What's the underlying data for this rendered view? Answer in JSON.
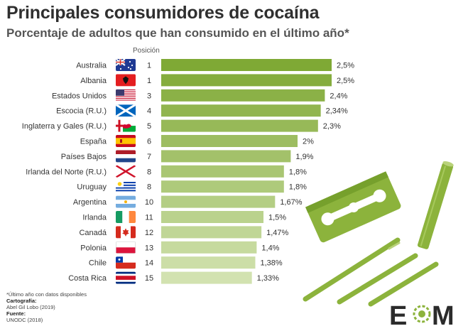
{
  "title": "Principales consumidores de cocaína",
  "subtitle": "Porcentaje de adultos que han consumido en el último año*",
  "position_header": "Posición",
  "chart_data": {
    "type": "bar",
    "orientation": "horizontal",
    "title": "Principales consumidores de cocaína",
    "subtitle": "Porcentaje de adultos que han consumido en el último año*",
    "xlim": [
      0,
      2.5
    ],
    "grid": false,
    "categories": [
      "Australia",
      "Albania",
      "Estados Unidos",
      "Escocia (R.U.)",
      "Inglaterra y Gales (R.U.)",
      "España",
      "Países Bajos",
      "Irlanda del Norte (R.U.)",
      "Uruguay",
      "Argentina",
      "Irlanda",
      "Canadá",
      "Polonia",
      "Chile",
      "Costa Rica"
    ],
    "values": [
      2.5,
      2.5,
      2.4,
      2.34,
      2.3,
      2.0,
      1.9,
      1.8,
      1.8,
      1.67,
      1.5,
      1.47,
      1.4,
      1.38,
      1.33
    ],
    "value_labels": [
      "2,5%",
      "2,5%",
      "2,4%",
      "2,34%",
      "2,3%",
      "2%",
      "1,9%",
      "1,8%",
      "1,8%",
      "1,67%",
      "1,5%",
      "1,47%",
      "1,4%",
      "1,38%",
      "1,33%"
    ],
    "positions": [
      "1",
      "1",
      "3",
      "4",
      "5",
      "6",
      "7",
      "8",
      "8",
      "10",
      "11",
      "12",
      "13",
      "14",
      "15"
    ],
    "flags": [
      "flag-australia-icon",
      "flag-albania-icon",
      "flag-usa-icon",
      "flag-scotland-icon",
      "flag-england-wales-icon",
      "flag-spain-icon",
      "flag-netherlands-icon",
      "flag-northern-ireland-icon",
      "flag-uruguay-icon",
      "flag-argentina-icon",
      "flag-ireland-icon",
      "flag-canada-icon",
      "flag-poland-icon",
      "flag-chile-icon",
      "flag-costa-rica-icon"
    ],
    "bar_color_start": "#7fa935",
    "bar_color_end": "#d2e2b0"
  },
  "footnote": "*Último año con datos disponibles",
  "cartografia_label": "Cartografía:",
  "cartografia_value": "Abel Gil Lobo (2019)",
  "fuente_label": "Fuente:",
  "fuente_value": "UNODC (2018)",
  "logo": {
    "letter1": "E",
    "letter2": "M"
  },
  "colors": {
    "accent": "#8cb33c",
    "text": "#333333"
  }
}
